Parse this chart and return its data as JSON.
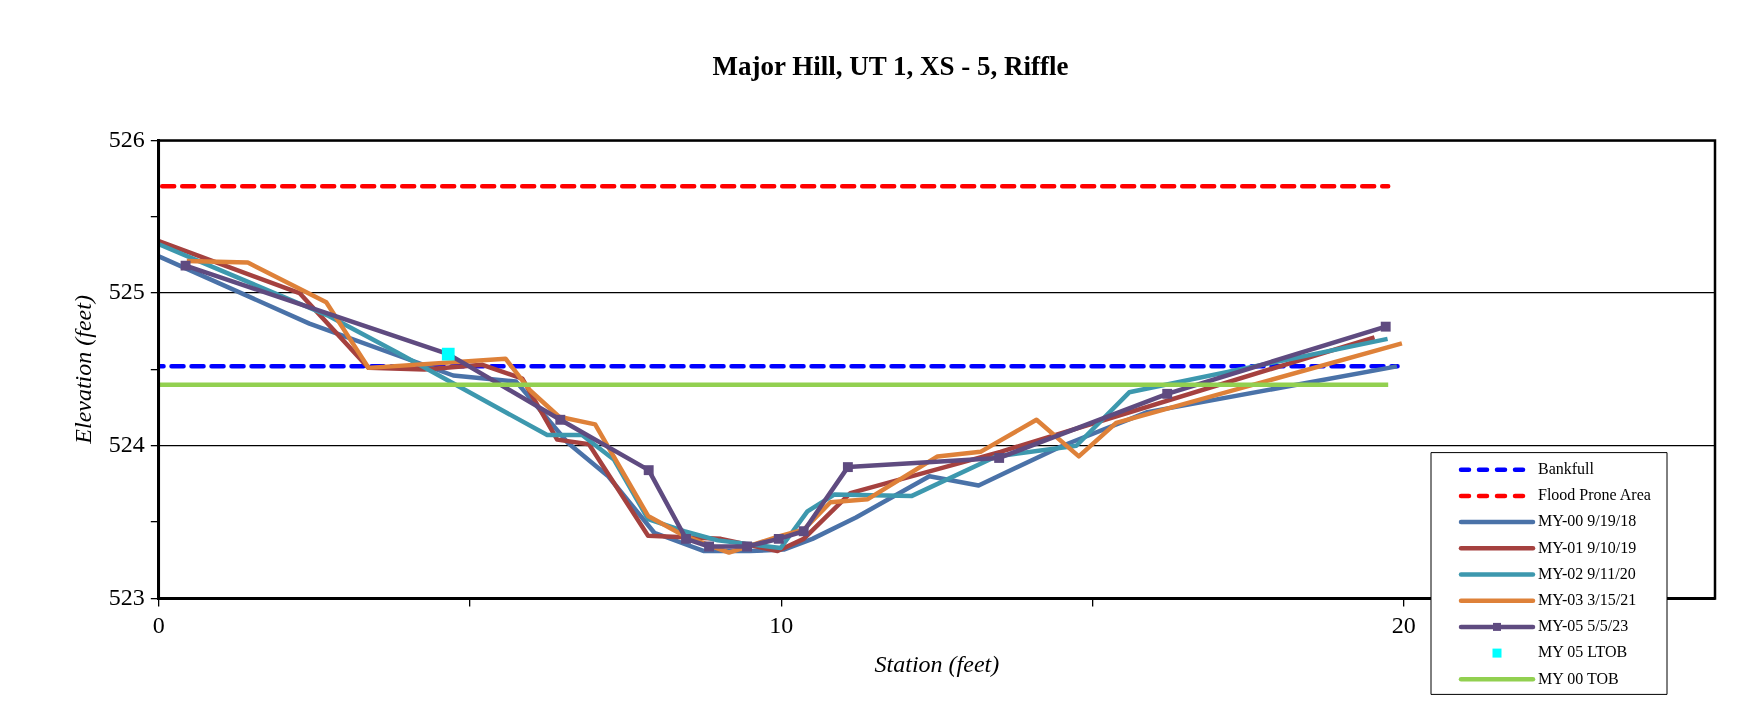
{
  "chart_data": {
    "type": "line",
    "title": "Major Hill, UT 1, XS - 5, Riffle",
    "xlabel": "Station (feet)",
    "ylabel": "Elevation (feet)",
    "xlim": [
      0,
      25
    ],
    "xticks": [
      0,
      {
        "value": 5,
        "label": null
      },
      10,
      {
        "value": 15,
        "label": null
      },
      20
    ],
    "ylim": [
      523,
      526
    ],
    "yticks": [
      523,
      {
        "value": 523.5,
        "label": null
      },
      524,
      {
        "value": 524.5,
        "label": null
      },
      525,
      {
        "value": 525.5,
        "label": null
      },
      526
    ],
    "grid": "y",
    "legend": "bottom right",
    "series": [
      {
        "name": "Bankfull",
        "type": "line",
        "color": "#0000ff",
        "line_style": "dashed",
        "marker": "none",
        "x": [
          0,
          19.9
        ],
        "values": [
          524.52,
          524.52
        ]
      },
      {
        "name": "Flood Prone Area",
        "type": "line",
        "color": "#ff0000",
        "line_style": "dashed",
        "marker": "none",
        "x": [
          0,
          19.75
        ],
        "values": [
          525.7,
          525.7
        ]
      },
      {
        "name": "MY-00 9/19/18",
        "type": "line",
        "color": "#4a72a8",
        "line_style": "solid",
        "marker": "none",
        "x": [
          0,
          2.42,
          4.73,
          5.74,
          6.57,
          7.22,
          7.96,
          8.76,
          9.5,
          10.04,
          10.5,
          11.2,
          12.38,
          13.17,
          14.52,
          15.88,
          19.89
        ],
        "values": [
          525.24,
          524.8,
          524.46,
          524.42,
          524.02,
          523.8,
          523.43,
          523.31,
          523.31,
          523.32,
          523.39,
          523.53,
          523.8,
          523.74,
          524.0,
          524.22,
          524.52
        ]
      },
      {
        "name": "MY-01 9/10/19",
        "type": "line",
        "color": "#a5413f",
        "line_style": "solid",
        "marker": "none",
        "x": [
          0,
          2.26,
          3.37,
          4.27,
          5.2,
          5.84,
          6.4,
          6.91,
          7.86,
          9.03,
          9.94,
          10.36,
          11.11,
          13.52,
          19.53
        ],
        "values": [
          525.34,
          525.0,
          524.51,
          524.5,
          524.53,
          524.44,
          524.04,
          524.01,
          523.41,
          523.39,
          523.31,
          523.39,
          523.69,
          523.96,
          524.71
        ]
      },
      {
        "name": "MY-02 9/11/20",
        "type": "line",
        "color": "#3d98ae",
        "line_style": "solid",
        "marker": "none",
        "x": [
          0,
          2.73,
          3.83,
          6.24,
          6.8,
          7.31,
          7.86,
          8.44,
          8.98,
          9.99,
          10.42,
          10.85,
          12.09,
          13.45,
          14.74,
          15.59,
          19.74
        ],
        "values": [
          525.32,
          524.85,
          524.61,
          524.07,
          524.07,
          523.91,
          523.52,
          523.44,
          523.38,
          523.33,
          523.57,
          523.68,
          523.67,
          523.93,
          524.0,
          524.35,
          524.7
        ]
      },
      {
        "name": "MY-03 3/15/21",
        "type": "line",
        "color": "#de8139",
        "line_style": "solid",
        "marker": "none",
        "x": [
          0.45,
          1.43,
          2.69,
          3.37,
          5.57,
          5.97,
          6.43,
          7.01,
          7.86,
          8.44,
          9.16,
          9.99,
          10.36,
          10.79,
          11.39,
          12.51,
          13.2,
          14.1,
          14.78,
          15.38,
          19.97
        ],
        "values": [
          525.21,
          525.2,
          524.94,
          524.51,
          524.57,
          524.36,
          524.19,
          524.14,
          523.54,
          523.41,
          523.3,
          523.41,
          523.45,
          523.63,
          523.65,
          523.93,
          523.96,
          524.17,
          523.93,
          524.15,
          524.67
        ]
      },
      {
        "name": "MY-05 5/5/23",
        "type": "line",
        "color": "#5f4b80",
        "line_style": "solid",
        "marker": "square",
        "x": [
          0.43,
          4.65,
          6.45,
          7.87,
          8.47,
          8.84,
          9.45,
          9.96,
          10.36,
          11.07,
          13.5,
          16.2,
          19.71
        ],
        "values": [
          525.18,
          524.6,
          524.17,
          523.84,
          523.39,
          523.34,
          523.34,
          523.39,
          523.44,
          523.86,
          523.92,
          524.34,
          524.78
        ]
      },
      {
        "name": "MY 05 LTOB",
        "type": "scatter",
        "color": "#00ffff",
        "marker": "square",
        "x": [
          4.65
        ],
        "values": [
          524.6
        ]
      },
      {
        "name": "MY 00 TOB",
        "type": "line",
        "color": "#92d050",
        "line_style": "solid",
        "marker": "none",
        "x": [
          0,
          19.75
        ],
        "values": [
          524.4,
          524.4
        ]
      }
    ]
  }
}
